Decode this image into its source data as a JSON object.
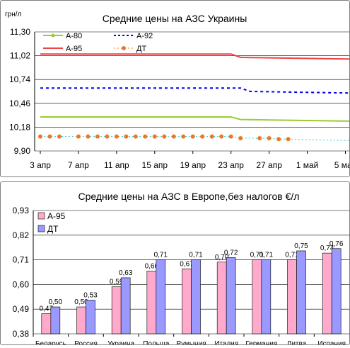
{
  "chart_data": [
    {
      "type": "line",
      "title": "Средние цены на АЗС Украины",
      "unit_label": "грн/л",
      "xlabel": "",
      "ylabel": "",
      "y_ticks": [
        "9,90",
        "10,18",
        "10,46",
        "10,74",
        "11,02",
        "11,30"
      ],
      "ylim": [
        9.9,
        11.3
      ],
      "x_tick_labels": [
        "3 апр",
        "7 апр",
        "11 апр",
        "15 апр",
        "19 апр",
        "23 апр",
        "27 апр",
        "1 май",
        "5 май"
      ],
      "x_tick_days": [
        0,
        4,
        8,
        12,
        16,
        20,
        24,
        28,
        32
      ],
      "x_range_days": [
        0,
        33
      ],
      "grid": "horizontal",
      "legend_position": "top-left",
      "series": [
        {
          "name": "А-80",
          "color": "#99cc33",
          "style": "solid-marker",
          "points": [
            [
              0,
              10.3
            ],
            [
              20,
              10.3
            ],
            [
              21,
              10.27
            ],
            [
              33,
              10.25
            ]
          ]
        },
        {
          "name": "А-92",
          "color": "#0000ee",
          "style": "dashed",
          "points": [
            [
              0,
              10.64
            ],
            [
              21,
              10.64
            ],
            [
              22,
              10.6
            ],
            [
              33,
              10.58
            ]
          ]
        },
        {
          "name": "А-95",
          "color": "#ee4444",
          "style": "solid",
          "points": [
            [
              0,
              11.04
            ],
            [
              20,
              11.04
            ],
            [
              21,
              11.0
            ],
            [
              33,
              10.98
            ]
          ]
        },
        {
          "name": "ДТ",
          "color": "#ee7722",
          "style": "dotted-marker",
          "points": [
            [
              0,
              10.07
            ],
            [
              1,
              10.07
            ],
            [
              2,
              10.07
            ],
            [
              4,
              10.07
            ],
            [
              5,
              10.07
            ],
            [
              6,
              10.07
            ],
            [
              7,
              10.07
            ],
            [
              8,
              10.07
            ],
            [
              9,
              10.07
            ],
            [
              10,
              10.07
            ],
            [
              11,
              10.07
            ],
            [
              12,
              10.07
            ],
            [
              13,
              10.07
            ],
            [
              14,
              10.07
            ],
            [
              15,
              10.07
            ],
            [
              16,
              10.07
            ],
            [
              17,
              10.07
            ],
            [
              18,
              10.07
            ],
            [
              19,
              10.07
            ],
            [
              20,
              10.07
            ],
            [
              21,
              10.05
            ],
            [
              23,
              10.05
            ],
            [
              24,
              10.05
            ],
            [
              25,
              10.04
            ],
            [
              26,
              10.04
            ],
            [
              33,
              10.02
            ]
          ]
        }
      ]
    },
    {
      "type": "bar",
      "title": "Средние цены на АЗС в Европе,без налогов €/л",
      "xlabel": "",
      "ylabel": "",
      "y_ticks": [
        "0,38",
        "0,49",
        "0,60",
        "0,71",
        "0,82",
        "0,93"
      ],
      "ylim": [
        0.38,
        0.93
      ],
      "legend_position": "top-left",
      "categories": [
        "Беларусь",
        "Россия",
        "Украина",
        "Польша",
        "Румыния",
        "Италия",
        "Германия",
        "Литва",
        "Испания"
      ],
      "series": [
        {
          "name": "А-95",
          "color": "#ffaacc",
          "values": [
            0.47,
            0.5,
            0.59,
            0.66,
            0.67,
            0.7,
            0.71,
            0.71,
            0.74
          ],
          "labels": [
            "0,47",
            "0,50",
            "0,59",
            "0,66",
            "0,67",
            "0,70",
            "0,71",
            "0,71",
            "0,74"
          ]
        },
        {
          "name": "ДТ",
          "color": "#9999ff",
          "values": [
            0.5,
            0.53,
            0.63,
            0.71,
            0.71,
            0.72,
            0.71,
            0.75,
            0.76
          ],
          "labels": [
            "0,50",
            "0,53",
            "0,63",
            "0,71",
            "0,71",
            "0,72",
            "0,71",
            "0,75",
            "0,76"
          ]
        }
      ]
    }
  ]
}
